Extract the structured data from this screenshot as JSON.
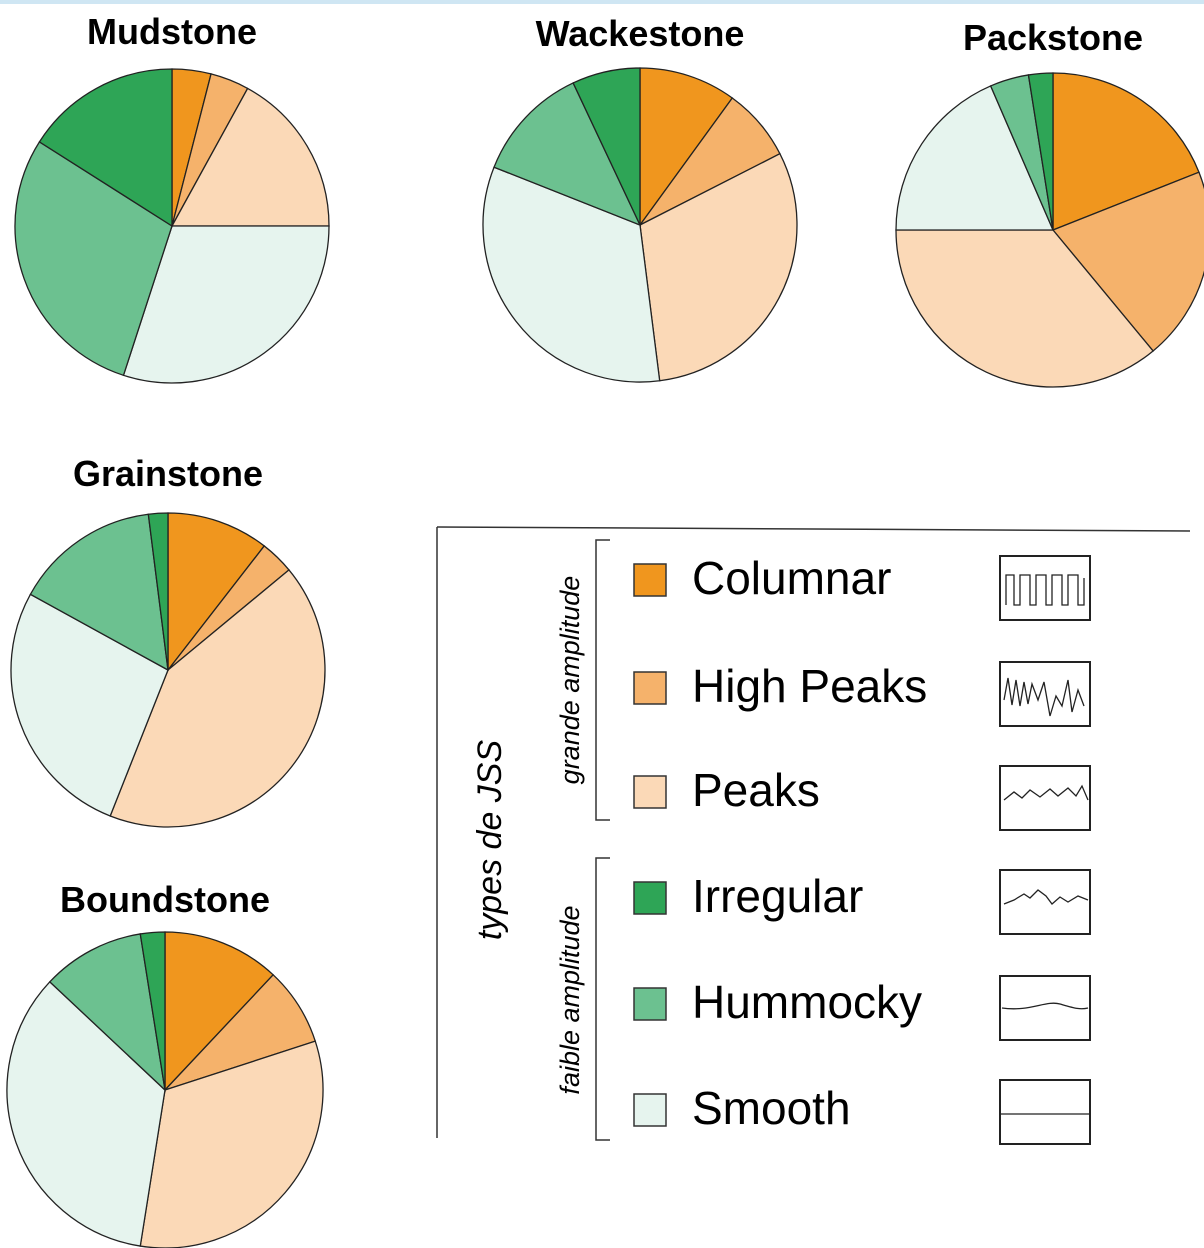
{
  "chart_data": [
    {
      "type": "pie",
      "title": "Mudstone",
      "values": [
        4,
        4,
        17,
        16,
        29,
        30
      ]
    },
    {
      "type": "pie",
      "title": "Wackestone",
      "values": [
        10,
        7.5,
        30.5,
        7,
        12,
        33
      ]
    },
    {
      "type": "pie",
      "title": "Packstone",
      "values": [
        19,
        20,
        36,
        2.5,
        4,
        18.5
      ]
    },
    {
      "type": "pie",
      "title": "Grainstone",
      "values": [
        10.5,
        3.5,
        42,
        2,
        15,
        27
      ]
    },
    {
      "type": "pie",
      "title": "Boundstone",
      "values": [
        12,
        8,
        32.5,
        2.5,
        10.5,
        34.5
      ]
    }
  ],
  "legend": {
    "title": "types de JSS",
    "groups": [
      {
        "label": "grande amplitude",
        "categories": [
          "Columnar",
          "High Peaks",
          "Peaks"
        ],
        "colors": [
          "#f0961e",
          "#f5b26b",
          "#fbd9b7"
        ]
      },
      {
        "label": "faible amplitude",
        "categories": [
          "Irregular",
          "Hummocky",
          "Smooth"
        ],
        "colors": [
          "#2ea556",
          "#6cc190",
          "#e6f4ee"
        ]
      }
    ]
  }
}
